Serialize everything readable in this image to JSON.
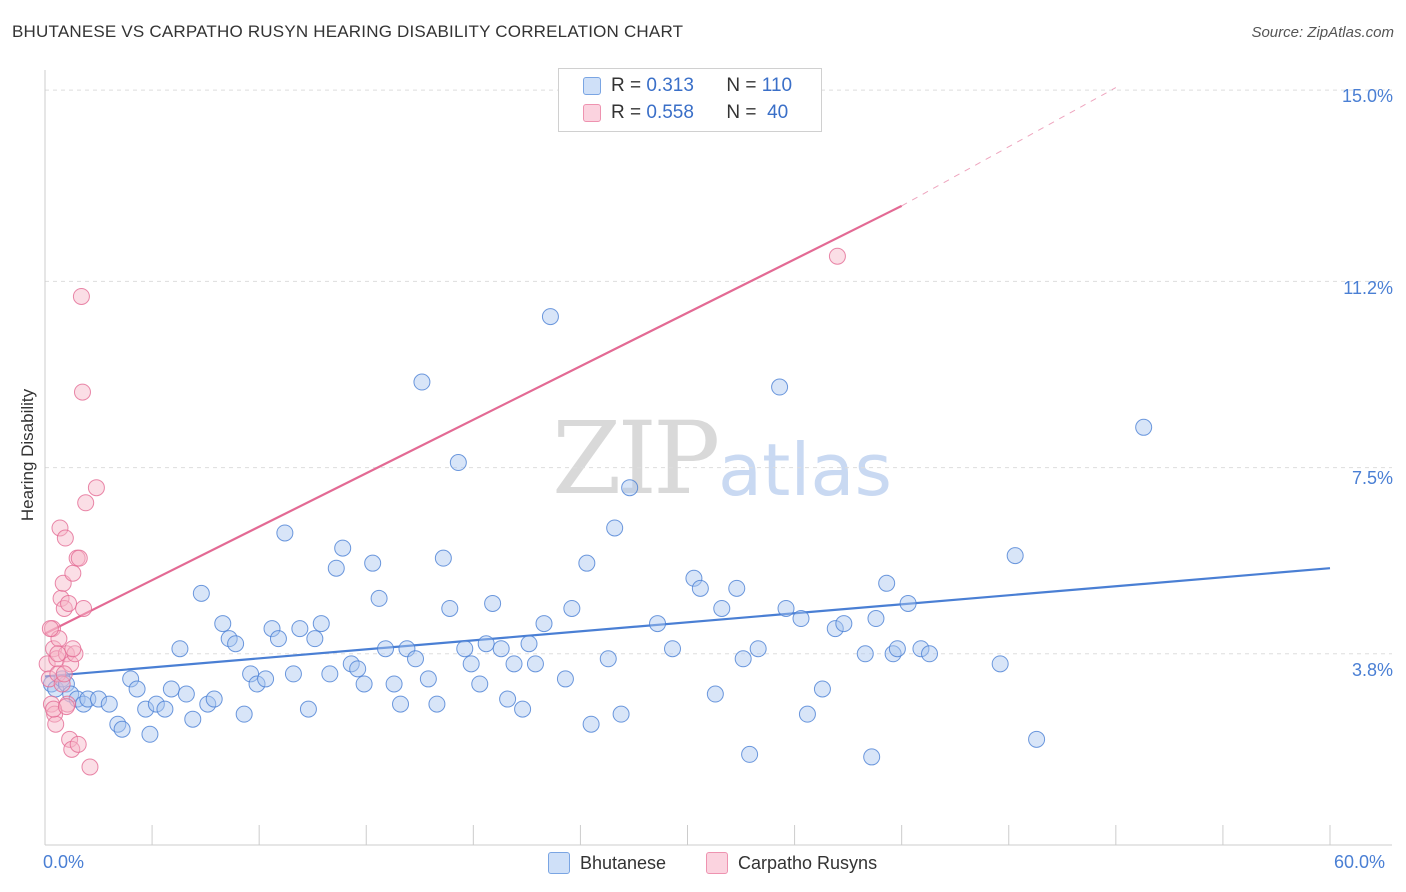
{
  "header": {
    "title": "BHUTANESE VS CARPATHO RUSYN HEARING DISABILITY CORRELATION CHART",
    "source": "Source: ZipAtlas.com"
  },
  "watermark": {
    "zip": "ZIP",
    "atlas": "atlas"
  },
  "legend": {
    "rows": [
      {
        "r_label": "R = ",
        "r_value": "0.313",
        "n_label": "N = ",
        "n_value": "110",
        "color": "#a9c6f0"
      },
      {
        "r_label": "R = ",
        "r_value": "0.558",
        "n_label": "N = ",
        "n_value": "40",
        "color": "#f6b6c8"
      }
    ]
  },
  "bottom_legend": [
    {
      "label": "Bhutanese",
      "color": "#a9c6f0"
    },
    {
      "label": "Carpatho Rusyns",
      "color": "#f6b6c8"
    }
  ],
  "chart_data": {
    "type": "scatter",
    "title": "BHUTANESE VS CARPATHO RUSYN HEARING DISABILITY CORRELATION CHART",
    "ylabel": "Hearing Disability",
    "xlabel": "",
    "xlim": [
      0,
      60
    ],
    "ylim": [
      0,
      15.4
    ],
    "x_tick_labels": [
      "0.0%",
      "60.0%"
    ],
    "y_ticks": [
      3.8,
      7.5,
      11.2,
      15.0
    ],
    "y_tick_labels": [
      "3.8%",
      "7.5%",
      "11.2%",
      "15.0%"
    ],
    "grid": true,
    "legend_position": "top-center",
    "series": [
      {
        "name": "Bhutanese",
        "color": "#4a7fd4",
        "fill": "#a9c6f0",
        "trend": {
          "x": [
            0,
            60
          ],
          "y": [
            3.35,
            5.5
          ]
        },
        "points": [
          [
            0.3,
            3.2
          ],
          [
            0.5,
            3.1
          ],
          [
            0.8,
            3.3
          ],
          [
            1.0,
            3.2
          ],
          [
            1.2,
            3.0
          ],
          [
            1.5,
            2.9
          ],
          [
            1.8,
            2.8
          ],
          [
            2.0,
            2.9
          ],
          [
            2.5,
            2.9
          ],
          [
            3.0,
            2.8
          ],
          [
            3.4,
            2.4
          ],
          [
            3.6,
            2.3
          ],
          [
            4.0,
            3.3
          ],
          [
            4.3,
            3.1
          ],
          [
            4.7,
            2.7
          ],
          [
            4.9,
            2.2
          ],
          [
            5.2,
            2.8
          ],
          [
            5.6,
            2.7
          ],
          [
            5.9,
            3.1
          ],
          [
            6.3,
            3.9
          ],
          [
            6.6,
            3.0
          ],
          [
            6.9,
            2.5
          ],
          [
            7.3,
            5.0
          ],
          [
            7.6,
            2.8
          ],
          [
            7.9,
            2.9
          ],
          [
            8.3,
            4.4
          ],
          [
            8.6,
            4.1
          ],
          [
            8.9,
            4.0
          ],
          [
            9.3,
            2.6
          ],
          [
            9.6,
            3.4
          ],
          [
            9.9,
            3.2
          ],
          [
            10.3,
            3.3
          ],
          [
            10.6,
            4.3
          ],
          [
            10.9,
            4.1
          ],
          [
            11.2,
            6.2
          ],
          [
            11.6,
            3.4
          ],
          [
            11.9,
            4.3
          ],
          [
            12.3,
            2.7
          ],
          [
            12.6,
            4.1
          ],
          [
            12.9,
            4.4
          ],
          [
            13.3,
            3.4
          ],
          [
            13.6,
            5.5
          ],
          [
            13.9,
            5.9
          ],
          [
            14.3,
            3.6
          ],
          [
            14.6,
            3.5
          ],
          [
            14.9,
            3.2
          ],
          [
            15.3,
            5.6
          ],
          [
            15.6,
            4.9
          ],
          [
            15.9,
            3.9
          ],
          [
            16.3,
            3.2
          ],
          [
            16.6,
            2.8
          ],
          [
            16.9,
            3.9
          ],
          [
            17.3,
            3.7
          ],
          [
            17.6,
            9.2
          ],
          [
            17.9,
            3.3
          ],
          [
            18.3,
            2.8
          ],
          [
            18.6,
            5.7
          ],
          [
            18.9,
            4.7
          ],
          [
            19.3,
            7.6
          ],
          [
            19.6,
            3.9
          ],
          [
            19.9,
            3.6
          ],
          [
            20.3,
            3.2
          ],
          [
            20.6,
            4.0
          ],
          [
            20.9,
            4.8
          ],
          [
            21.3,
            3.9
          ],
          [
            21.6,
            2.9
          ],
          [
            21.9,
            3.6
          ],
          [
            22.3,
            2.7
          ],
          [
            22.6,
            4.0
          ],
          [
            22.9,
            3.6
          ],
          [
            23.3,
            4.4
          ],
          [
            23.6,
            10.5
          ],
          [
            24.3,
            3.3
          ],
          [
            24.6,
            4.7
          ],
          [
            25.3,
            5.6
          ],
          [
            25.5,
            2.4
          ],
          [
            26.3,
            3.7
          ],
          [
            26.6,
            6.3
          ],
          [
            26.9,
            2.6
          ],
          [
            27.3,
            7.1
          ],
          [
            28.6,
            4.4
          ],
          [
            29.3,
            3.9
          ],
          [
            30.3,
            5.3
          ],
          [
            30.6,
            5.1
          ],
          [
            31.3,
            3.0
          ],
          [
            31.6,
            4.7
          ],
          [
            32.3,
            5.1
          ],
          [
            32.6,
            3.7
          ],
          [
            32.9,
            1.8
          ],
          [
            33.3,
            3.9
          ],
          [
            34.3,
            9.1
          ],
          [
            34.6,
            4.7
          ],
          [
            35.3,
            4.5
          ],
          [
            35.6,
            2.6
          ],
          [
            36.3,
            3.1
          ],
          [
            36.9,
            4.3
          ],
          [
            37.3,
            4.4
          ],
          [
            38.3,
            3.8
          ],
          [
            38.6,
            1.75
          ],
          [
            39.3,
            5.2
          ],
          [
            38.8,
            4.5
          ],
          [
            39.6,
            3.8
          ],
          [
            40.3,
            4.8
          ],
          [
            40.9,
            3.9
          ],
          [
            41.3,
            3.8
          ],
          [
            44.6,
            3.6
          ],
          [
            45.3,
            5.75
          ],
          [
            46.3,
            2.1
          ],
          [
            51.3,
            8.3
          ],
          [
            39.8,
            3.9
          ]
        ]
      },
      {
        "name": "Carpatho Rusyns",
        "color": "#e36a94",
        "fill": "#f6b6c8",
        "trend": {
          "x": [
            0,
            40
          ],
          "y": [
            4.2,
            12.7
          ]
        },
        "trend_dashed": {
          "x": [
            40,
            50
          ],
          "y": [
            12.7,
            15.05
          ]
        },
        "points": [
          [
            0.1,
            3.6
          ],
          [
            0.2,
            3.3
          ],
          [
            0.3,
            2.8
          ],
          [
            0.35,
            4.3
          ],
          [
            0.4,
            3.9
          ],
          [
            0.45,
            2.6
          ],
          [
            0.5,
            2.4
          ],
          [
            0.55,
            3.7
          ],
          [
            0.6,
            3.4
          ],
          [
            0.65,
            4.1
          ],
          [
            0.7,
            6.3
          ],
          [
            0.75,
            4.9
          ],
          [
            0.8,
            3.2
          ],
          [
            0.85,
            5.2
          ],
          [
            0.9,
            4.7
          ],
          [
            0.95,
            6.1
          ],
          [
            1.0,
            3.8
          ],
          [
            1.05,
            2.8
          ],
          [
            1.1,
            4.8
          ],
          [
            1.15,
            2.1
          ],
          [
            1.2,
            3.6
          ],
          [
            1.25,
            1.9
          ],
          [
            1.3,
            5.4
          ],
          [
            1.4,
            3.8
          ],
          [
            1.5,
            5.7
          ],
          [
            1.55,
            2.0
          ],
          [
            1.6,
            5.7
          ],
          [
            1.7,
            10.9
          ],
          [
            1.75,
            9.0
          ],
          [
            1.8,
            4.7
          ],
          [
            1.9,
            6.8
          ],
          [
            2.1,
            1.55
          ],
          [
            2.4,
            7.1
          ],
          [
            0.25,
            4.3
          ],
          [
            0.6,
            3.8
          ],
          [
            0.9,
            3.4
          ],
          [
            1.3,
            3.9
          ],
          [
            0.4,
            2.7
          ],
          [
            1.0,
            2.75
          ],
          [
            37.0,
            11.7
          ]
        ]
      }
    ]
  }
}
